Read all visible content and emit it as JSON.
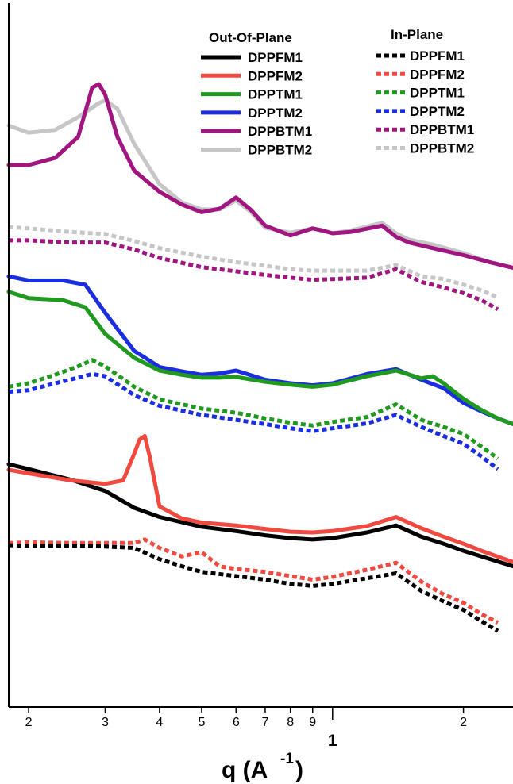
{
  "chart_data": {
    "type": "line",
    "title": "",
    "xlabel": "q (A",
    "xlabel_exponent": "-1",
    "xlabel_close": ")",
    "ylabel": "",
    "xscale": "log",
    "xlim": [
      0.018,
      0.26
    ],
    "ylim": [
      0,
      1
    ],
    "y_axis": "unlabeled, offset traces (arbitrary units)",
    "grid": false,
    "legend_placement": "top-right",
    "legend_groups": [
      {
        "title": "Out-Of-Plane",
        "line_style": "solid",
        "entries": [
          "DPPFM1",
          "DPPFM2",
          "DPPTM1",
          "DPPTM2",
          "DPPBTM1",
          "DPPBTM2"
        ]
      },
      {
        "title": "In-Plane",
        "line_style": "dotted",
        "entries": [
          "DPPFM1",
          "DPPFM2",
          "DPPTM1",
          "DPPTM2",
          "DPPBTM1",
          "DPPBTM2"
        ]
      }
    ],
    "x_ticks": [
      {
        "value": 0.02,
        "label": "2"
      },
      {
        "value": 0.03,
        "label": "3"
      },
      {
        "value": 0.04,
        "label": "4"
      },
      {
        "value": 0.05,
        "label": "5"
      },
      {
        "value": 0.06,
        "label": "6"
      },
      {
        "value": 0.07,
        "label": "7"
      },
      {
        "value": 0.08,
        "label": "8"
      },
      {
        "value": 0.09,
        "label": "9"
      },
      {
        "value": 0.1,
        "label": "1"
      },
      {
        "value": 0.2,
        "label": "2"
      }
    ],
    "x_major_tick_value": 0.1,
    "series": [
      {
        "name": "DPPBTM2",
        "orientation": "Out-Of-Plane",
        "style": "solid",
        "color": "#c6c6c6",
        "x": [
          0.018,
          0.02,
          0.023,
          0.026,
          0.029,
          0.03,
          0.032,
          0.035,
          0.04,
          0.045,
          0.05,
          0.055,
          0.06,
          0.065,
          0.07,
          0.08,
          0.09,
          0.1,
          0.11,
          0.13,
          0.14,
          0.15,
          0.17,
          0.2,
          0.23,
          0.26
        ],
        "y": [
          0.826,
          0.816,
          0.82,
          0.838,
          0.858,
          0.862,
          0.85,
          0.8,
          0.743,
          0.717,
          0.707,
          0.707,
          0.72,
          0.703,
          0.681,
          0.674,
          0.68,
          0.673,
          0.677,
          0.688,
          0.673,
          0.664,
          0.657,
          0.645,
          0.632,
          0.624
        ]
      },
      {
        "name": "DPPBTM1",
        "orientation": "Out-Of-Plane",
        "style": "solid",
        "color": "#a0157f",
        "x": [
          0.018,
          0.02,
          0.023,
          0.026,
          0.028,
          0.029,
          0.03,
          0.032,
          0.035,
          0.04,
          0.045,
          0.05,
          0.055,
          0.06,
          0.065,
          0.07,
          0.08,
          0.09,
          0.095,
          0.1,
          0.11,
          0.13,
          0.14,
          0.15,
          0.17,
          0.2,
          0.23,
          0.26
        ],
        "y": [
          0.77,
          0.77,
          0.78,
          0.81,
          0.88,
          0.885,
          0.87,
          0.81,
          0.762,
          0.732,
          0.714,
          0.703,
          0.708,
          0.724,
          0.706,
          0.684,
          0.67,
          0.68,
          0.677,
          0.673,
          0.675,
          0.684,
          0.668,
          0.66,
          0.652,
          0.642,
          0.632,
          0.624
        ]
      },
      {
        "name": "DPPBTM2",
        "orientation": "In-Plane",
        "style": "dotted",
        "color": "#c6c6c6",
        "x": [
          0.018,
          0.02,
          0.025,
          0.03,
          0.035,
          0.04,
          0.05,
          0.06,
          0.07,
          0.08,
          0.09,
          0.1,
          0.12,
          0.14,
          0.16,
          0.18,
          0.2,
          0.22,
          0.24
        ],
        "y": [
          0.682,
          0.68,
          0.675,
          0.672,
          0.662,
          0.652,
          0.64,
          0.632,
          0.627,
          0.622,
          0.62,
          0.62,
          0.62,
          0.628,
          0.612,
          0.608,
          0.6,
          0.592,
          0.582
        ]
      },
      {
        "name": "DPPBTM1",
        "orientation": "In-Plane",
        "style": "dotted",
        "color": "#a0157f",
        "x": [
          0.018,
          0.02,
          0.025,
          0.03,
          0.035,
          0.04,
          0.05,
          0.06,
          0.07,
          0.08,
          0.09,
          0.1,
          0.12,
          0.14,
          0.16,
          0.18,
          0.2,
          0.22,
          0.24
        ],
        "y": [
          0.663,
          0.663,
          0.66,
          0.66,
          0.65,
          0.638,
          0.625,
          0.619,
          0.614,
          0.61,
          0.607,
          0.608,
          0.61,
          0.622,
          0.604,
          0.596,
          0.588,
          0.578,
          0.565
        ]
      },
      {
        "name": "DPPTM2",
        "orientation": "Out-Of-Plane",
        "style": "solid",
        "color": "#1a2ee0",
        "x": [
          0.018,
          0.02,
          0.024,
          0.027,
          0.03,
          0.035,
          0.04,
          0.045,
          0.05,
          0.055,
          0.06,
          0.07,
          0.08,
          0.09,
          0.1,
          0.12,
          0.14,
          0.16,
          0.18,
          0.2,
          0.22,
          0.24,
          0.26
        ],
        "y": [
          0.612,
          0.606,
          0.606,
          0.6,
          0.56,
          0.506,
          0.483,
          0.477,
          0.472,
          0.474,
          0.478,
          0.465,
          0.46,
          0.457,
          0.46,
          0.473,
          0.48,
          0.465,
          0.453,
          0.432,
          0.42,
          0.41,
          0.402
        ]
      },
      {
        "name": "DPPTM1",
        "orientation": "Out-Of-Plane",
        "style": "solid",
        "color": "#1f9a1f",
        "x": [
          0.018,
          0.02,
          0.024,
          0.027,
          0.03,
          0.035,
          0.04,
          0.045,
          0.05,
          0.055,
          0.06,
          0.07,
          0.08,
          0.09,
          0.1,
          0.12,
          0.14,
          0.16,
          0.17,
          0.18,
          0.2,
          0.22,
          0.24,
          0.26
        ],
        "y": [
          0.59,
          0.581,
          0.578,
          0.568,
          0.53,
          0.496,
          0.478,
          0.472,
          0.468,
          0.468,
          0.469,
          0.462,
          0.458,
          0.455,
          0.458,
          0.47,
          0.478,
          0.467,
          0.47,
          0.46,
          0.438,
          0.422,
          0.41,
          0.402
        ]
      },
      {
        "name": "DPPTM1",
        "orientation": "In-Plane",
        "style": "dotted",
        "color": "#1f9a1f",
        "x": [
          0.018,
          0.02,
          0.023,
          0.026,
          0.028,
          0.03,
          0.035,
          0.04,
          0.05,
          0.06,
          0.07,
          0.08,
          0.09,
          0.1,
          0.12,
          0.14,
          0.16,
          0.18,
          0.2,
          0.22,
          0.24
        ],
        "y": [
          0.455,
          0.46,
          0.472,
          0.484,
          0.493,
          0.484,
          0.455,
          0.437,
          0.424,
          0.418,
          0.41,
          0.404,
          0.4,
          0.405,
          0.412,
          0.43,
          0.408,
          0.398,
          0.388,
          0.37,
          0.353
        ]
      },
      {
        "name": "DPPTM2",
        "orientation": "In-Plane",
        "style": "dotted",
        "color": "#1a2ee0",
        "x": [
          0.018,
          0.02,
          0.023,
          0.026,
          0.028,
          0.03,
          0.035,
          0.04,
          0.05,
          0.06,
          0.07,
          0.08,
          0.09,
          0.1,
          0.12,
          0.14,
          0.16,
          0.18,
          0.2,
          0.22,
          0.24
        ],
        "y": [
          0.448,
          0.45,
          0.46,
          0.468,
          0.473,
          0.47,
          0.443,
          0.428,
          0.415,
          0.408,
          0.402,
          0.396,
          0.392,
          0.396,
          0.403,
          0.415,
          0.398,
          0.385,
          0.374,
          0.356,
          0.338
        ]
      },
      {
        "name": "DPPFM1",
        "orientation": "Out-Of-Plane",
        "style": "solid",
        "color": "#000000",
        "x": [
          0.018,
          0.02,
          0.025,
          0.03,
          0.035,
          0.04,
          0.05,
          0.06,
          0.07,
          0.08,
          0.09,
          0.1,
          0.12,
          0.14,
          0.16,
          0.18,
          0.2,
          0.22,
          0.26
        ],
        "y": [
          0.345,
          0.338,
          0.323,
          0.307,
          0.283,
          0.27,
          0.256,
          0.25,
          0.244,
          0.24,
          0.238,
          0.24,
          0.248,
          0.258,
          0.242,
          0.232,
          0.222,
          0.214,
          0.2
        ]
      },
      {
        "name": "DPPFM2",
        "orientation": "Out-Of-Plane",
        "style": "solid",
        "color": "#f04a40",
        "x": [
          0.018,
          0.02,
          0.025,
          0.03,
          0.033,
          0.035,
          0.036,
          0.037,
          0.038,
          0.04,
          0.045,
          0.05,
          0.06,
          0.07,
          0.08,
          0.09,
          0.1,
          0.12,
          0.14,
          0.16,
          0.18,
          0.2,
          0.22,
          0.26
        ],
        "y": [
          0.337,
          0.332,
          0.322,
          0.317,
          0.322,
          0.36,
          0.38,
          0.385,
          0.355,
          0.285,
          0.268,
          0.262,
          0.258,
          0.253,
          0.249,
          0.248,
          0.25,
          0.257,
          0.27,
          0.254,
          0.242,
          0.232,
          0.222,
          0.206
        ]
      },
      {
        "name": "DPPFM2",
        "orientation": "In-Plane",
        "style": "dotted",
        "color": "#f04a40",
        "x": [
          0.018,
          0.02,
          0.025,
          0.03,
          0.035,
          0.037,
          0.04,
          0.045,
          0.05,
          0.055,
          0.06,
          0.07,
          0.08,
          0.09,
          0.1,
          0.12,
          0.14,
          0.16,
          0.18,
          0.2,
          0.22,
          0.24
        ],
        "y": [
          0.233,
          0.234,
          0.233,
          0.233,
          0.233,
          0.238,
          0.226,
          0.214,
          0.22,
          0.2,
          0.196,
          0.192,
          0.186,
          0.181,
          0.185,
          0.195,
          0.205,
          0.178,
          0.16,
          0.148,
          0.132,
          0.12
        ]
      },
      {
        "name": "DPPFM1",
        "orientation": "In-Plane",
        "style": "dotted",
        "color": "#000000",
        "x": [
          0.018,
          0.02,
          0.025,
          0.03,
          0.035,
          0.04,
          0.045,
          0.05,
          0.06,
          0.07,
          0.08,
          0.09,
          0.1,
          0.12,
          0.14,
          0.16,
          0.18,
          0.2,
          0.22,
          0.24
        ],
        "y": [
          0.23,
          0.229,
          0.229,
          0.228,
          0.226,
          0.21,
          0.2,
          0.192,
          0.186,
          0.181,
          0.175,
          0.172,
          0.175,
          0.183,
          0.19,
          0.165,
          0.15,
          0.138,
          0.122,
          0.108
        ]
      }
    ]
  }
}
